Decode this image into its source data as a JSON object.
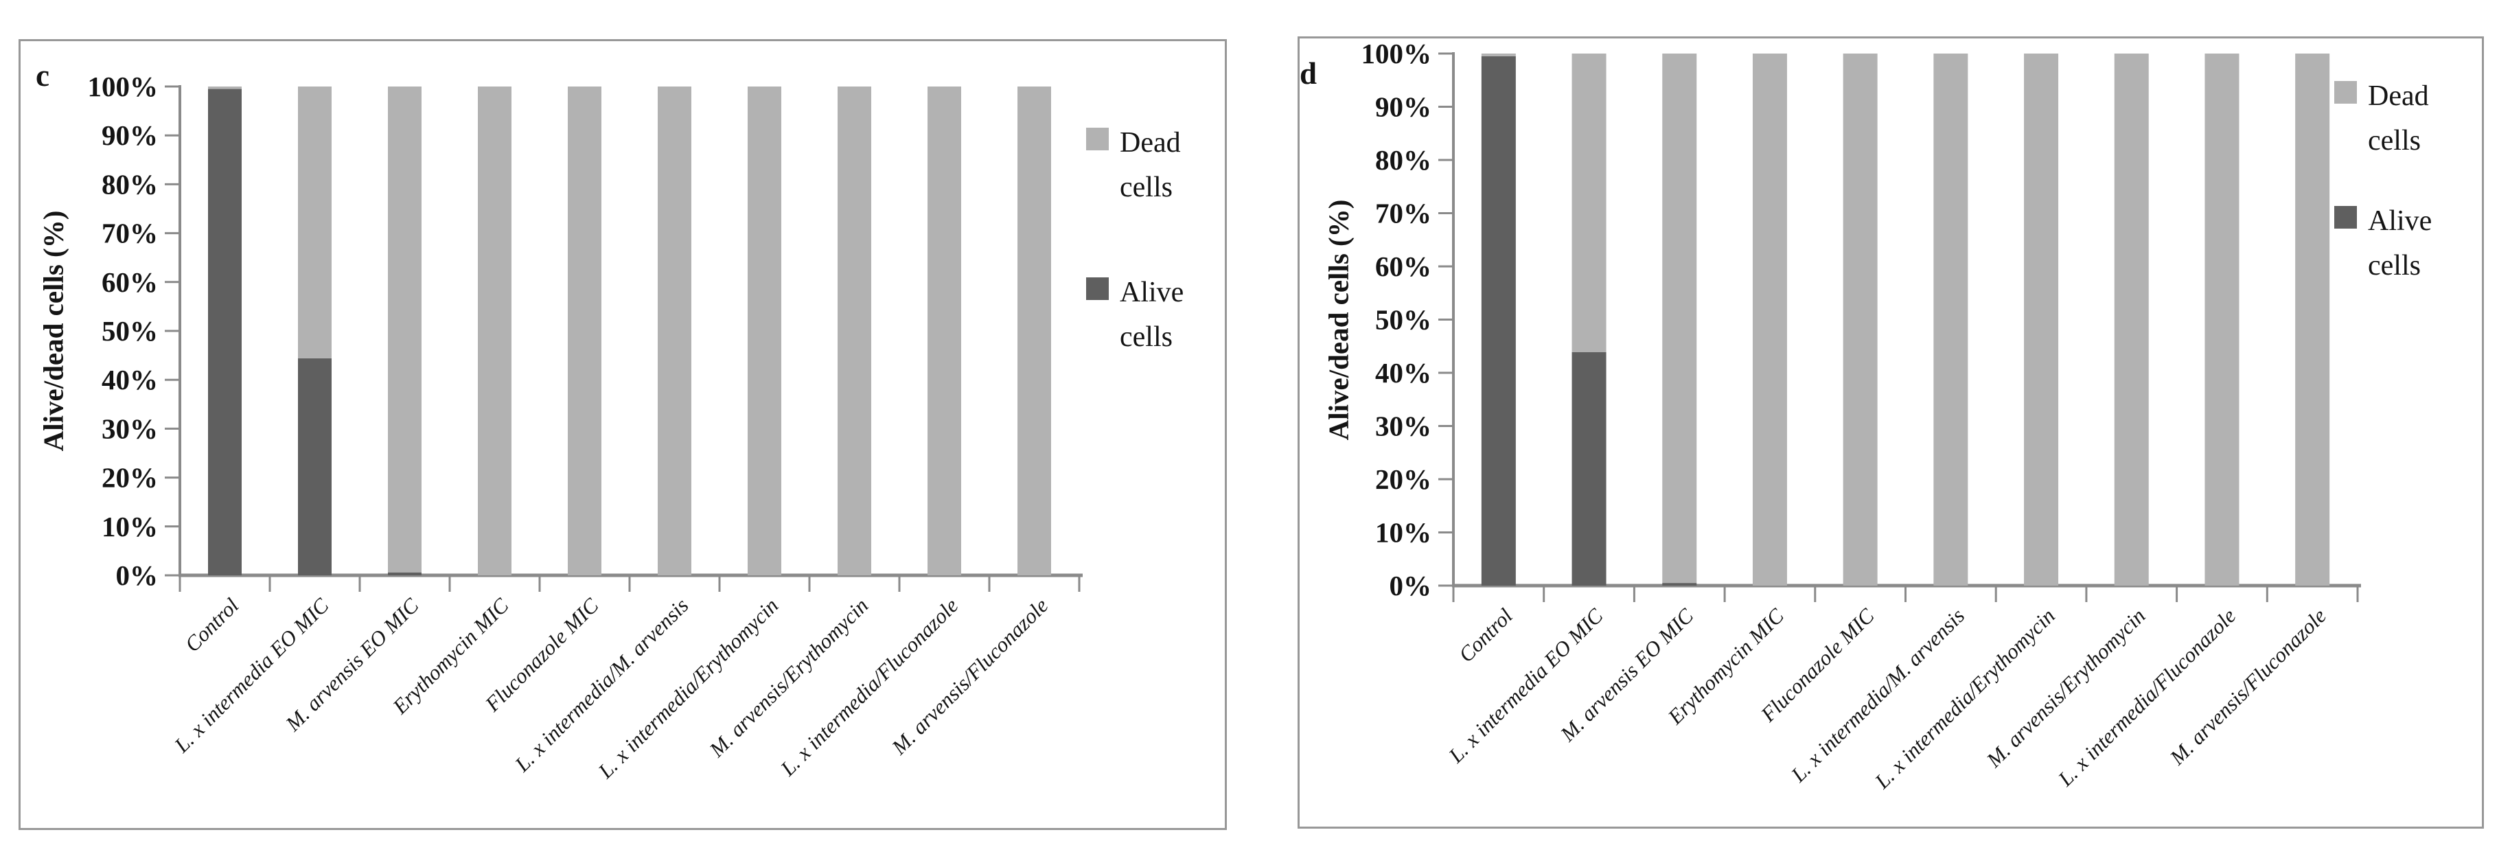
{
  "chart_data": [
    {
      "type": "bar",
      "stacked": true,
      "panel_label": "c",
      "title": "",
      "xlabel": "",
      "ylabel": "Alive/dead cells (%)",
      "ylim": [
        0,
        100
      ],
      "ytick_step": 10,
      "ytick_suffix": "%",
      "grid": false,
      "legend_position": "right",
      "categories": [
        "Control",
        "L. x intermedia EO MIC",
        "M. arvensis EO MIC",
        "Erythomycin MIC",
        "Fluconazole MIC",
        "L. x intermedia/M. arvensis",
        "L. x intermedia/Erythomycin",
        "M. arvensis/Erythomycin",
        "L. x intermedia/Fluconazole",
        "M. arvensis/Fluconazole"
      ],
      "series": [
        {
          "name": "Alive cells",
          "color": "#5f5f5f",
          "values": [
            99.5,
            44.4,
            0.6,
            0,
            0,
            0,
            0,
            0,
            0,
            0
          ]
        },
        {
          "name": "Dead cells",
          "color": "#b2b2b2",
          "values": [
            0.5,
            55.6,
            99.4,
            100,
            100,
            100,
            100,
            100,
            100,
            100
          ]
        }
      ],
      "legend": [
        {
          "lines": [
            "Dead",
            "cells"
          ],
          "series": "Dead cells"
        },
        {
          "lines": [
            "Alive",
            "cells"
          ],
          "series": "Alive cells"
        }
      ]
    },
    {
      "type": "bar",
      "stacked": true,
      "panel_label": "d",
      "title": "",
      "xlabel": "",
      "ylabel": "Alive/dead cells (%)",
      "ylim": [
        0,
        100
      ],
      "ytick_step": 10,
      "ytick_suffix": "%",
      "grid": false,
      "legend_position": "right",
      "categories": [
        "Control",
        "L. x intermedia EO MIC",
        "M. arvensis EO MIC",
        "Erythomycin MIC",
        "Fluconazole MIC",
        "L. x intermedia/M. arvensis",
        "L. x intermedia/Erythomycin",
        "M. arvensis/Erythomycin",
        "L. x intermedia/Fluconazole",
        "M. arvensis/Fluconazole"
      ],
      "series": [
        {
          "name": "Alive cells",
          "color": "#5f5f5f",
          "values": [
            99.5,
            43.9,
            0.5,
            0,
            0,
            0,
            0,
            0,
            0,
            0
          ]
        },
        {
          "name": "Dead cells",
          "color": "#b2b2b2",
          "values": [
            0.5,
            56.1,
            99.5,
            100,
            100,
            100,
            100,
            100,
            100,
            100
          ]
        }
      ],
      "legend": [
        {
          "lines": [
            "Dead",
            "cells"
          ],
          "series": "Dead cells"
        },
        {
          "lines": [
            "Alive",
            "cells"
          ],
          "series": "Alive cells"
        }
      ]
    }
  ],
  "colors": {
    "alive": "#5f5f5f",
    "dead": "#b2b2b2",
    "axis": "#8a8a8a",
    "panel_border": "#989898",
    "text": "#141414"
  }
}
